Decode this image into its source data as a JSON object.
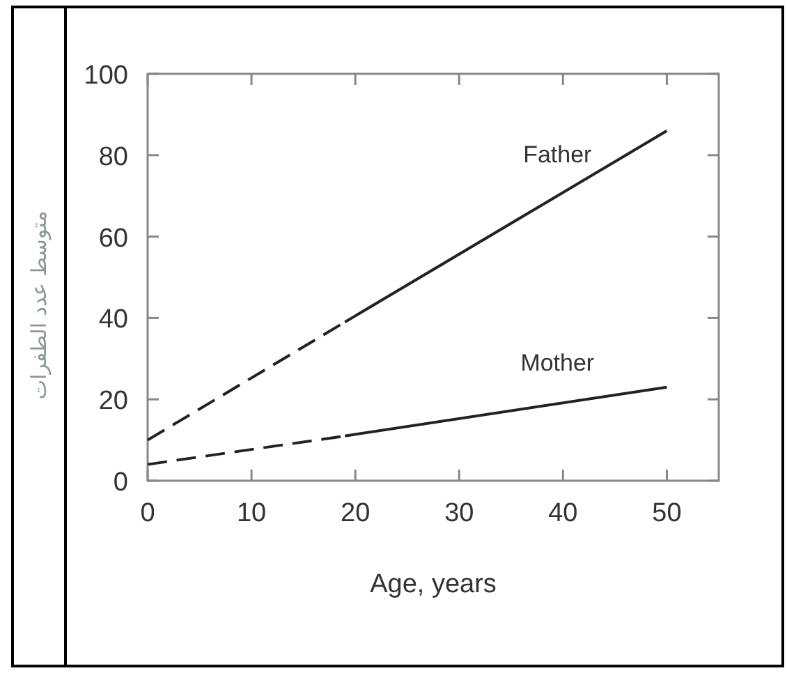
{
  "chart_data": {
    "type": "line",
    "xlabel": "Age, years",
    "ylabel": "متوسط عدد الطفرات",
    "xlim": [
      0,
      55
    ],
    "ylim": [
      0,
      100
    ],
    "xticks": [
      0,
      10,
      20,
      30,
      40,
      50
    ],
    "yticks": [
      0,
      20,
      40,
      60,
      80,
      100
    ],
    "series": [
      {
        "color": "#222222",
        "line_style": "dashed",
        "x": [
          0,
          19
        ],
        "values": [
          10,
          39
        ]
      },
      {
        "name": "Father",
        "color": "#222222",
        "line_style": "solid",
        "x": [
          19,
          50
        ],
        "values": [
          39,
          86
        ]
      },
      {
        "color": "#222222",
        "line_style": "dashed",
        "x": [
          0,
          19
        ],
        "values": [
          4,
          11
        ]
      },
      {
        "name": "Mother",
        "color": "#222222",
        "line_style": "solid",
        "x": [
          19,
          50
        ],
        "values": [
          11,
          23
        ]
      }
    ],
    "grid": false,
    "marker": "none"
  }
}
